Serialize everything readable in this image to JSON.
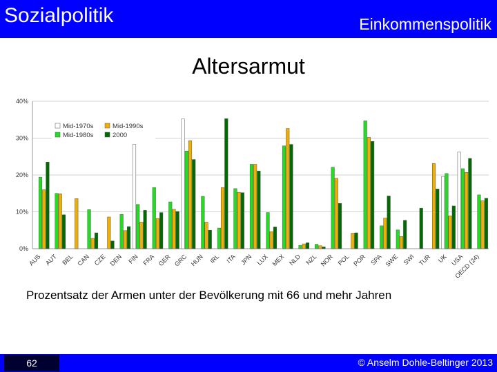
{
  "header": {
    "left": "Sozialpolitik",
    "right": "Einkommenspolitik"
  },
  "title": "Altersarmut",
  "caption": "Prozentsatz der Armen unter der Bevölkerung mit 66 und mehr Jahren",
  "footer": {
    "page": "62",
    "copyright": "© Anselm Dohle-Beltinger 2013"
  },
  "colors": {
    "brand": "#0000ff",
    "footer_page_bg": "#000030"
  },
  "chart_data": {
    "type": "bar",
    "categories": [
      "AUS",
      "AUT",
      "BEL",
      "CAN",
      "CZE",
      "DEN",
      "FIN",
      "FRA",
      "GER",
      "GRC",
      "HUN",
      "IRL",
      "ITA",
      "JPN",
      "LUX",
      "MEX",
      "NLD",
      "NZL",
      "NOR",
      "POL",
      "POR",
      "SPA",
      "SWE",
      "SWI",
      "TUR",
      "UK",
      "USA",
      "OECD (24)"
    ],
    "series": [
      {
        "name": "Mid-1970s",
        "color": "#ffffff",
        "values": [
          null,
          null,
          null,
          null,
          null,
          null,
          28.3,
          null,
          null,
          35.2,
          null,
          null,
          null,
          null,
          null,
          null,
          null,
          null,
          null,
          null,
          null,
          null,
          null,
          null,
          null,
          19.6,
          26.2,
          null
        ]
      },
      {
        "name": "Mid-1980s",
        "color": "#22dd22",
        "values": [
          19.4,
          15.0,
          null,
          10.6,
          null,
          9.3,
          12.0,
          16.6,
          12.7,
          26.5,
          14.2,
          5.6,
          16.3,
          22.9,
          9.8,
          27.9,
          0.9,
          1.2,
          22.1,
          null,
          34.7,
          6.2,
          5.1,
          null,
          null,
          20.4,
          21.7,
          14.6
        ]
      },
      {
        "name": "Mid-1990s",
        "color": "#f0b000",
        "values": [
          16.0,
          14.9,
          13.6,
          2.8,
          8.6,
          4.9,
          7.2,
          8.2,
          10.7,
          29.3,
          7.2,
          16.6,
          15.3,
          22.9,
          4.6,
          32.6,
          1.3,
          0.8,
          19.1,
          4.2,
          30.2,
          8.3,
          3.3,
          null,
          23.1,
          8.9,
          20.7,
          13.0
        ]
      },
      {
        "name": "2000",
        "color": "#006b00",
        "values": [
          23.5,
          9.2,
          null,
          4.3,
          2.1,
          6.0,
          10.4,
          9.8,
          10.1,
          24.2,
          5.0,
          35.3,
          15.2,
          21.1,
          5.9,
          28.3,
          1.6,
          0.5,
          12.3,
          4.3,
          29.1,
          14.3,
          7.7,
          11.0,
          16.2,
          11.6,
          24.5,
          13.7
        ]
      }
    ],
    "ylim": [
      0,
      40
    ],
    "yticks": [
      "0%",
      "10%",
      "20%",
      "30%",
      "40%"
    ],
    "grid": true,
    "legend": "top-left"
  }
}
